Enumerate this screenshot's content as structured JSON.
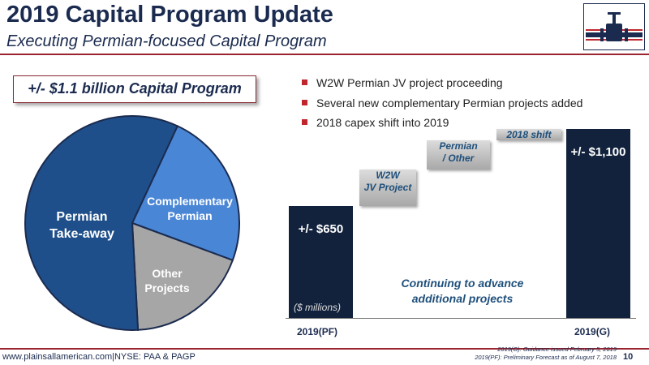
{
  "header": {
    "title": "2019 Capital Program Update",
    "subtitle": "Executing Permian-focused Capital Program"
  },
  "logo": {
    "icon": "pipeline-valve-logo-icon",
    "colors": [
      "#1b2b4f",
      "#c0262e"
    ]
  },
  "program_box": {
    "label": "+/- $1.1 billion Capital Program"
  },
  "pie": {
    "slices": [
      {
        "label_line1": "Permian",
        "label_line2": "Take-away",
        "fraction": 0.578,
        "color": "#1f4f8a"
      },
      {
        "label_line1": "Complementary",
        "label_line2": "Permian",
        "fraction": 0.237,
        "color": "#4a86d6"
      },
      {
        "label_line1": "Other",
        "label_line2": "Projects",
        "fraction": 0.185,
        "color": "#a6a6a6"
      }
    ]
  },
  "bullets": [
    "W2W  Permian JV project proceeding",
    "Several new complementary Permian projects added",
    "2018 capex shift into 2019"
  ],
  "chart_data": {
    "type": "bar",
    "subtype": "waterfall",
    "categories": [
      "2019(PF)",
      "W2W JV Project",
      "Permian / Other",
      "2018 shift",
      "2019(G)"
    ],
    "values": [
      650,
      215,
      170,
      65,
      1100
    ],
    "units": "($ millions)",
    "value_labels": {
      "start": "+/- $650",
      "end": "+/- $1,100"
    },
    "step_labels": [
      {
        "line1": "W2W",
        "line2": "JV Project"
      },
      {
        "line1": "Permian",
        "line2": "/ Other"
      },
      {
        "line1": "2018 shift",
        "line2": ""
      }
    ],
    "xlabel": "",
    "ylabel": "",
    "annotation_line1": "Continuing to advance",
    "annotation_line2": "additional projects"
  },
  "footer": {
    "website": "www.plainsallamerican.com",
    "separator": "|",
    "ticker": "NYSE: PAA & PAGP",
    "note1": "2019(G): Guidance issued February 5, 2019",
    "note2": "2019(PF): Preliminary Forecast as of August 7, 2018",
    "page": "10"
  }
}
